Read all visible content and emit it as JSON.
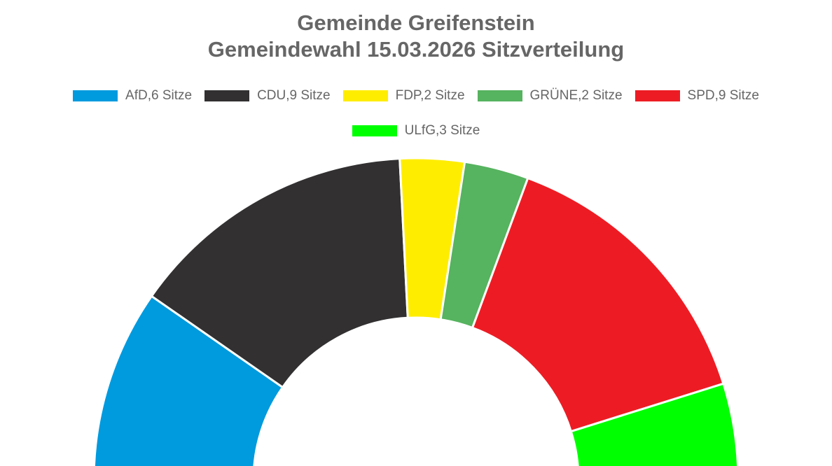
{
  "chart_data": {
    "type": "pie",
    "subtype": "half-donut",
    "title_lines": [
      "Gemeinde Greifenstein",
      "Gemeindewahl 15.03.2026 Sitzverteilung"
    ],
    "legend_position": "top",
    "series": [
      {
        "name": "AfD",
        "seats": 6,
        "legend_label": "AfD,6 Sitze",
        "color": "#009ADE"
      },
      {
        "name": "CDU",
        "seats": 9,
        "legend_label": "CDU,9 Sitze",
        "color": "#323031"
      },
      {
        "name": "FDP",
        "seats": 2,
        "legend_label": "FDP,2 Sitze",
        "color": "#FFED00"
      },
      {
        "name": "GRÜNE",
        "seats": 2,
        "legend_label": "GRÜNE,2 Sitze",
        "color": "#56B35F"
      },
      {
        "name": "SPD",
        "seats": 9,
        "legend_label": "SPD,9 Sitze",
        "color": "#ED1C24"
      },
      {
        "name": "ULfG",
        "seats": 3,
        "legend_label": "ULfG,3 Sitze",
        "color": "#00FF00"
      }
    ],
    "total_seats": 31
  }
}
